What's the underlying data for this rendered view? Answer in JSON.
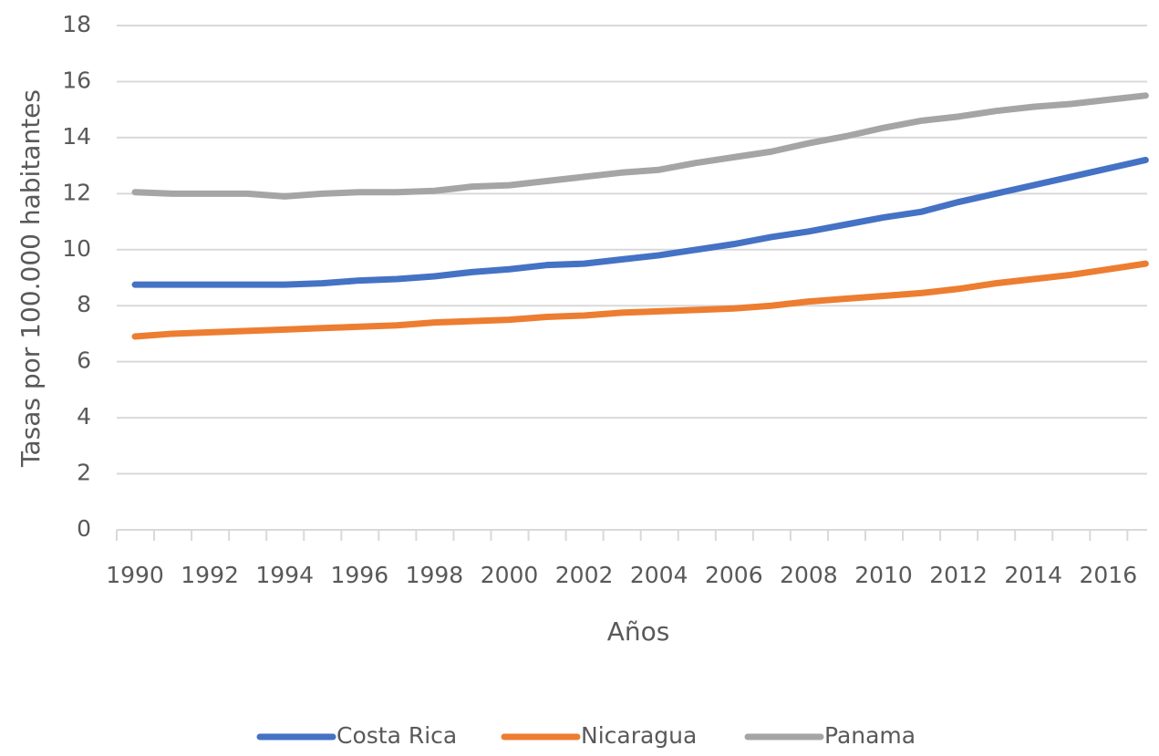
{
  "chart_data": {
    "type": "line",
    "y_label": "Tasas por 100.000 habitantes",
    "x_label": "Años",
    "categories": [
      "1990",
      null,
      "1992",
      null,
      "1994",
      null,
      "1996",
      null,
      "1998",
      null,
      "2000",
      null,
      "2002",
      null,
      "2004",
      null,
      "2006",
      null,
      "2008",
      null,
      "2010",
      null,
      "2012",
      null,
      "2014",
      null,
      "2016",
      null
    ],
    "series": [
      {
        "name": "Costa Rica",
        "color": "#4472c4",
        "values": [
          8.75,
          8.75,
          8.75,
          8.75,
          8.75,
          8.8,
          8.9,
          8.95,
          9.05,
          9.2,
          9.3,
          9.45,
          9.5,
          9.65,
          9.8,
          10.0,
          10.2,
          10.45,
          10.65,
          10.9,
          11.15,
          11.35,
          11.7,
          12.0,
          12.3,
          12.6,
          12.9,
          13.2
        ]
      },
      {
        "name": "Nicaragua",
        "color": "#ed7d31",
        "values": [
          6.9,
          7.0,
          7.05,
          7.1,
          7.15,
          7.2,
          7.25,
          7.3,
          7.4,
          7.45,
          7.5,
          7.6,
          7.65,
          7.75,
          7.8,
          7.85,
          7.9,
          8.0,
          8.15,
          8.25,
          8.35,
          8.45,
          8.6,
          8.8,
          8.95,
          9.1,
          9.3,
          9.5
        ]
      },
      {
        "name": "Panama",
        "color": "#a5a5a5",
        "values": [
          12.05,
          12.0,
          12.0,
          12.0,
          11.9,
          12.0,
          12.05,
          12.05,
          12.1,
          12.25,
          12.3,
          12.45,
          12.6,
          12.75,
          12.85,
          13.1,
          13.3,
          13.5,
          13.8,
          14.05,
          14.35,
          14.6,
          14.75,
          14.95,
          15.1,
          15.2,
          15.35,
          15.5
        ]
      }
    ],
    "ylim": [
      0,
      18
    ],
    "yticks": [
      0,
      2,
      4,
      6,
      8,
      10,
      12,
      14,
      16,
      18
    ],
    "grid": true,
    "legend": "bottom"
  }
}
